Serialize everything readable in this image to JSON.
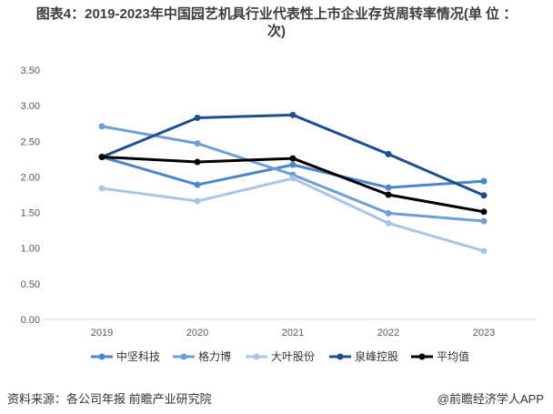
{
  "title_line1": "图表4：2019-2023年中国园艺机具行业代表性上市企业存货周转率情况(单 位 ：",
  "title_line2": "次)",
  "source": "资料来源：各公司年报 前瞻产业研究院",
  "brand": "@前瞻经济学人APP",
  "chart_data": {
    "type": "line",
    "x": [
      "2019",
      "2020",
      "2021",
      "2022",
      "2023"
    ],
    "ylim": [
      0,
      3.5
    ],
    "yticks": [
      "0.00",
      "0.50",
      "1.00",
      "1.50",
      "2.00",
      "2.50",
      "3.00",
      "3.50"
    ],
    "grid": false,
    "legend_position": "bottom",
    "series": [
      {
        "name": "中坚科技",
        "color": "#4a86c8",
        "values": [
          2.28,
          1.89,
          2.17,
          1.85,
          1.94
        ]
      },
      {
        "name": "格力博",
        "color": "#6e9fd4",
        "values": [
          2.71,
          2.47,
          2.03,
          1.49,
          1.38
        ]
      },
      {
        "name": "大叶股份",
        "color": "#a9c6e8",
        "values": [
          1.84,
          1.66,
          1.98,
          1.35,
          0.96
        ]
      },
      {
        "name": "泉峰控股",
        "color": "#1f4e8c",
        "values": [
          2.28,
          2.83,
          2.87,
          2.32,
          1.74
        ]
      },
      {
        "name": "平均值",
        "color": "#000000",
        "values": [
          2.28,
          2.21,
          2.26,
          1.75,
          1.51
        ]
      }
    ]
  }
}
